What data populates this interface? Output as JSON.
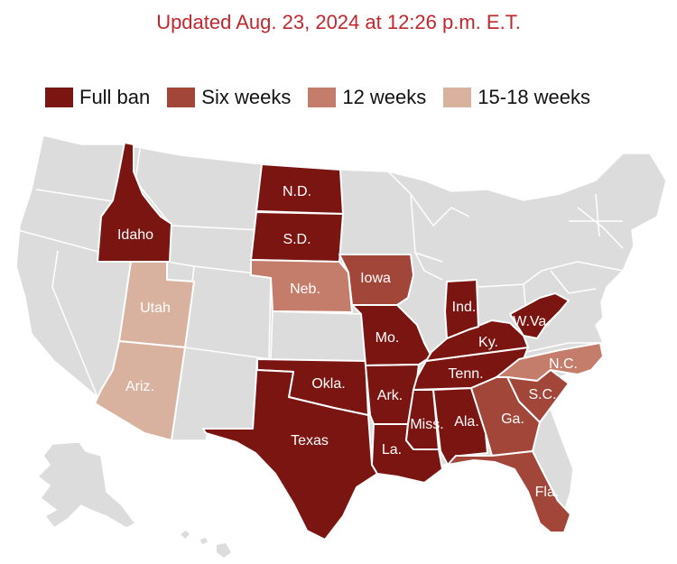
{
  "header": {
    "updated": "Updated Aug. 23, 2024 at 12:26 p.m. E.T."
  },
  "legend": [
    {
      "label": "Full ban",
      "color": "#7b1512"
    },
    {
      "label": "Six weeks",
      "color": "#a3463a"
    },
    {
      "label": "12 weeks",
      "color": "#c47d6b"
    },
    {
      "label": "15-18 weeks",
      "color": "#d9b19f"
    }
  ],
  "colors": {
    "no_restriction": "#dcdcdc",
    "border": "#ffffff",
    "title": "#c1272d"
  },
  "states": {
    "idaho": "Idaho",
    "nd": "N.D.",
    "sd": "S.D.",
    "neb": "Neb.",
    "iowa": "Iowa",
    "utah": "Utah",
    "ariz": "Ariz.",
    "okla": "Okla.",
    "texas": "Texas",
    "mo": "Mo.",
    "ark": "Ark.",
    "la": "La.",
    "miss": "Miss.",
    "ala": "Ala.",
    "tenn": "Tenn.",
    "ky": "Ky.",
    "ind": "Ind.",
    "wva": "W.Va.",
    "nc": "N.C.",
    "sc": "S.C.",
    "ga": "Ga.",
    "fla": "Fla."
  }
}
